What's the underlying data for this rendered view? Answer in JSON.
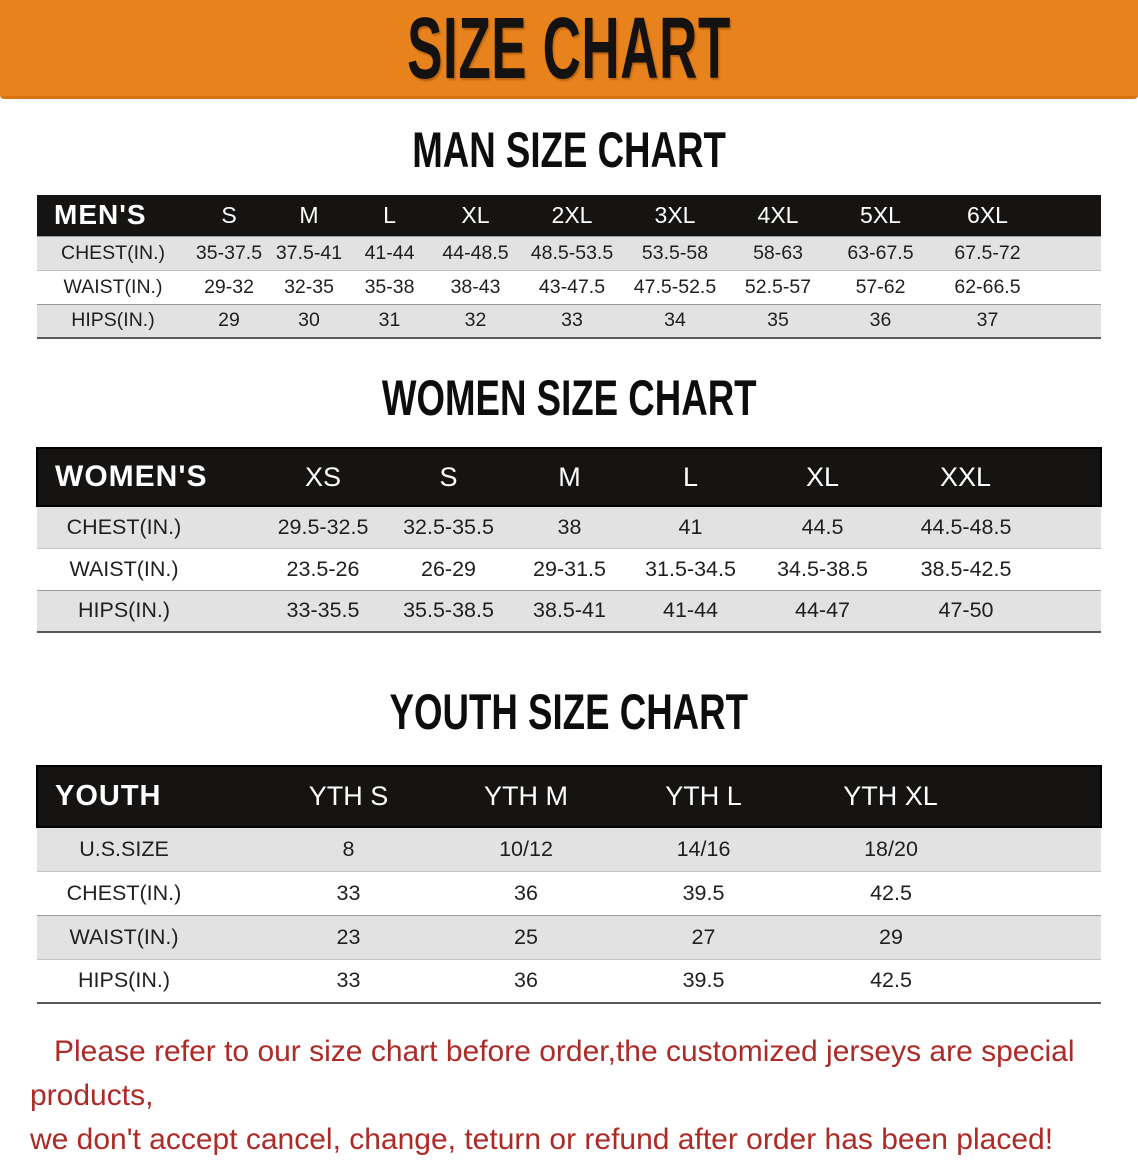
{
  "banner": {
    "title": "SIZE CHART"
  },
  "sections": [
    {
      "title": "MAN SIZE CHART",
      "group_label": "MEN'S",
      "size_columns": [
        "S",
        "M",
        "L",
        "XL",
        "2XL",
        "3XL",
        "4XL",
        "5XL",
        "6XL"
      ],
      "rows": [
        {
          "label": "CHEST(IN.)",
          "values": [
            "35-37.5",
            "37.5-41",
            "41-44",
            "44-48.5",
            "48.5-53.5",
            "53.5-58",
            "58-63",
            "63-67.5",
            "67.5-72"
          ]
        },
        {
          "label": "WAIST(IN.)",
          "values": [
            "29-32",
            "32-35",
            "35-38",
            "38-43",
            "43-47.5",
            "47.5-52.5",
            "52.5-57",
            "57-62",
            "62-66.5"
          ]
        },
        {
          "label": "HIPS(IN.)",
          "values": [
            "29",
            "30",
            "31",
            "32",
            "33",
            "34",
            "35",
            "36",
            "37"
          ]
        }
      ]
    },
    {
      "title": "WOMEN SIZE CHART",
      "group_label": "WOMEN'S",
      "size_columns": [
        "XS",
        "S",
        "M",
        "L",
        "XL",
        "XXL"
      ],
      "rows": [
        {
          "label": "CHEST(IN.)",
          "values": [
            "29.5-32.5",
            "32.5-35.5",
            "38",
            "41",
            "44.5",
            "44.5-48.5"
          ]
        },
        {
          "label": "WAIST(IN.)",
          "values": [
            "23.5-26",
            "26-29",
            "29-31.5",
            "31.5-34.5",
            "34.5-38.5",
            "38.5-42.5"
          ]
        },
        {
          "label": "HIPS(IN.)",
          "values": [
            "33-35.5",
            "35.5-38.5",
            "38.5-41",
            "41-44",
            "44-47",
            "47-50"
          ]
        }
      ]
    },
    {
      "title": "YOUTH SIZE CHART",
      "group_label": "YOUTH",
      "size_columns": [
        "YTH S",
        "YTH M",
        "YTH L",
        "YTH XL"
      ],
      "rows": [
        {
          "label": "U.S.SIZE",
          "values": [
            "8",
            "10/12",
            "14/16",
            "18/20"
          ]
        },
        {
          "label": "CHEST(IN.)",
          "values": [
            "33",
            "36",
            "39.5",
            "42.5"
          ]
        },
        {
          "label": "WAIST(IN.)",
          "values": [
            "23",
            "25",
            "27",
            "29"
          ]
        },
        {
          "label": "HIPS(IN.)",
          "values": [
            "33",
            "36",
            "39.5",
            "42.5"
          ]
        }
      ]
    }
  ],
  "footer": {
    "line1": "Please refer to our size chart before order,the customized jerseys are special products,",
    "line2": "we don't accept cancel, change, teturn or refund after order has been placed!"
  },
  "colors": {
    "banner_orange": "#E8821D",
    "header_black": "#161412",
    "row_gray": "#E2E2E2",
    "notice_red": "#AE2A27"
  }
}
